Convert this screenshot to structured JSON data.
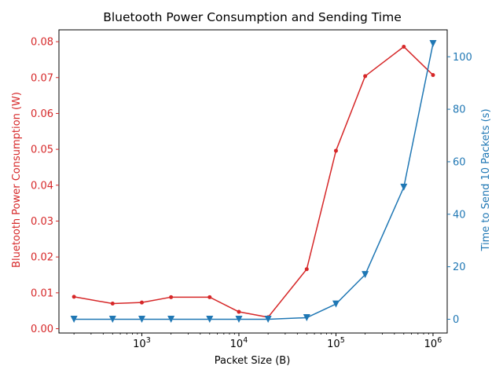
{
  "chart_data": {
    "type": "line",
    "title": "Bluetooth Power Consumption and Sending Time",
    "xlabel": "Packet Size (B)",
    "xscale": "log",
    "xlim": [
      140,
      1400000
    ],
    "xticks": [
      {
        "value": 1000,
        "base": "10",
        "exp": "3"
      },
      {
        "value": 10000,
        "base": "10",
        "exp": "4"
      },
      {
        "value": 100000,
        "base": "10",
        "exp": "5"
      },
      {
        "value": 1000000,
        "base": "10",
        "exp": "6"
      }
    ],
    "x": [
      200,
      500,
      1000,
      2000,
      5000,
      10000,
      20000,
      50000,
      100000,
      200000,
      500000,
      1000000
    ],
    "left_axis": {
      "label": "Bluetooth Power Consumption (W)",
      "color": "#d62728",
      "ylim": [
        -0.0012,
        0.0833
      ],
      "ticks": [
        "0.00",
        "0.01",
        "0.02",
        "0.03",
        "0.04",
        "0.05",
        "0.06",
        "0.07",
        "0.08"
      ]
    },
    "right_axis": {
      "label": "Time to Send 10 Packets (s)",
      "color": "#1f77b4",
      "ylim": [
        -5.25,
        110.25
      ],
      "ticks": [
        "0",
        "20",
        "40",
        "60",
        "80",
        "100"
      ]
    },
    "series": [
      {
        "axis": "left",
        "color": "#d62728",
        "marker": "circle",
        "values": [
          0.0089,
          0.007,
          0.0073,
          0.0088,
          0.0088,
          0.0047,
          0.0032,
          0.0166,
          0.0496,
          0.0704,
          0.0786,
          0.0707
        ]
      },
      {
        "axis": "right",
        "color": "#1f77b4",
        "marker": "triangle-down",
        "values": [
          0,
          0,
          0,
          0,
          0,
          0,
          0,
          0.6,
          5.8,
          17,
          50.3,
          105
        ]
      }
    ]
  }
}
